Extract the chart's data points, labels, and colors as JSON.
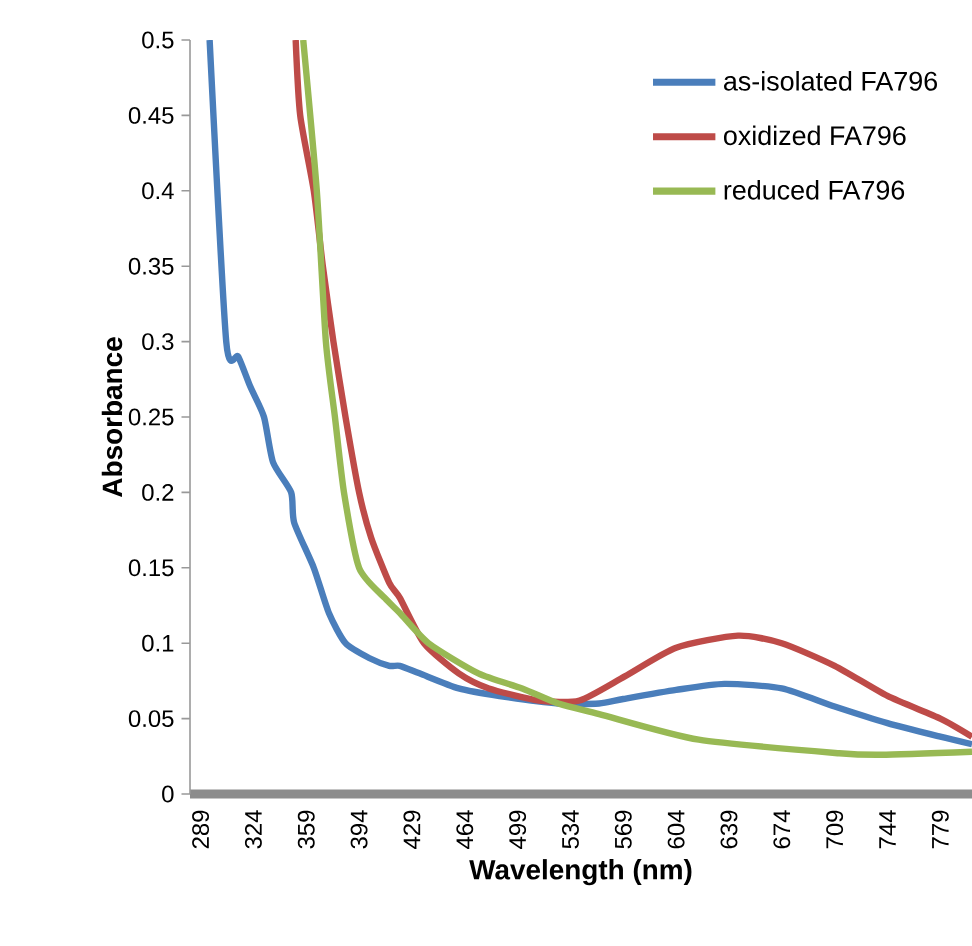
{
  "chart_data": {
    "type": "line",
    "xlabel": "Wavelength (nm)",
    "ylabel": "Absorbance",
    "xlim": [
      282,
      800
    ],
    "ylim": [
      0,
      0.5
    ],
    "xticks": [
      289,
      324,
      359,
      394,
      429,
      464,
      499,
      534,
      569,
      604,
      639,
      674,
      709,
      744,
      779
    ],
    "yticks": [
      0,
      0.05,
      0.1,
      0.15,
      0.2,
      0.25,
      0.3,
      0.35,
      0.4,
      0.45,
      0.5
    ],
    "legend": "top right",
    "series": [
      {
        "name": "as-isolated FA796",
        "color": "#4a7ebb",
        "x": [
          295,
          306,
          314,
          322,
          331,
          337,
          349,
          351,
          364,
          374,
          385,
          401,
          414,
          421,
          434,
          460,
          487,
          526,
          553,
          569,
          604,
          636,
          674,
          709,
          744,
          779,
          800
        ],
        "values": [
          0.5,
          0.3,
          0.29,
          0.27,
          0.25,
          0.22,
          0.2,
          0.18,
          0.15,
          0.12,
          0.1,
          0.09,
          0.085,
          0.085,
          0.08,
          0.07,
          0.065,
          0.06,
          0.06,
          0.063,
          0.069,
          0.073,
          0.07,
          0.058,
          0.047,
          0.038,
          0.033
        ]
      },
      {
        "name": "oxidized FA796",
        "color": "#be4b48",
        "x": [
          352,
          355,
          364,
          370,
          377,
          385,
          394,
          402,
          414,
          421,
          437,
          460,
          480,
          513,
          540,
          570,
          604,
          645,
          674,
          709,
          744,
          779,
          800
        ],
        "values": [
          0.5,
          0.45,
          0.4,
          0.35,
          0.3,
          0.25,
          0.2,
          0.17,
          0.14,
          0.13,
          0.1,
          0.08,
          0.07,
          0.062,
          0.062,
          0.078,
          0.097,
          0.105,
          0.1,
          0.085,
          0.065,
          0.05,
          0.038
        ]
      },
      {
        "name": "reduced FA796",
        "color": "#98b954",
        "x": [
          357,
          366,
          372,
          378,
          384,
          394,
          411,
          421,
          440,
          473,
          502,
          526,
          553,
          619,
          712,
          740,
          800
        ],
        "values": [
          0.5,
          0.4,
          0.3,
          0.25,
          0.2,
          0.15,
          0.13,
          0.12,
          0.1,
          0.08,
          0.07,
          0.06,
          0.053,
          0.036,
          0.027,
          0.026,
          0.028
        ]
      }
    ]
  }
}
